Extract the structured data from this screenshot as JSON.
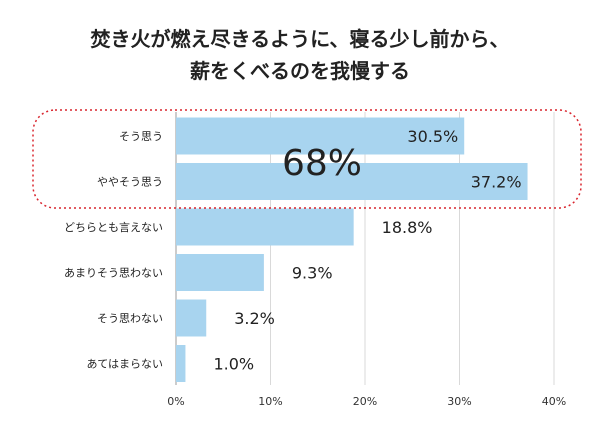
{
  "chart_data": {
    "type": "bar",
    "orientation": "horizontal",
    "title_lines": [
      "焚き火が燃え尽きるように、寝る少し前から、",
      "薪をくべるのを我慢する"
    ],
    "categories": [
      "そう思う",
      "ややそう思う",
      "どちらとも言えない",
      "あまりそう思わない",
      "そう思わない",
      "あてはまらない"
    ],
    "values": [
      30.5,
      37.2,
      18.8,
      9.3,
      3.2,
      1.0
    ],
    "value_labels": [
      "30.5%",
      "37.2%",
      "18.8%",
      "9.3%",
      "3.2%",
      "1.0%"
    ],
    "xlim": [
      0,
      40
    ],
    "ticks": [
      0,
      10,
      20,
      30,
      40
    ],
    "tick_labels": [
      "0%",
      "10%",
      "20%",
      "30%",
      "40%"
    ],
    "grid": true,
    "callout": "68%",
    "highlighted_categories": [
      "そう思う",
      "ややそう思う"
    ],
    "colors": {
      "bar": "#a8d4ef",
      "highlight_border": "#d9252e",
      "grid": "#d9d9d9"
    }
  }
}
